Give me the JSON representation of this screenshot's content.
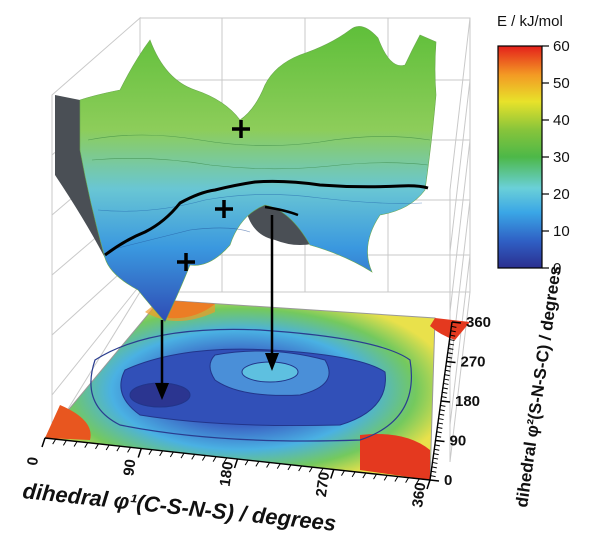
{
  "chart_data": {
    "type": "surface3d-with-contour",
    "xlabel": "dihedral φ¹(C-S-N-S) / degrees",
    "ylabel": "dihedral φ²(S-N-S-C) / degrees",
    "x_ticks": [
      "0",
      "90",
      "180",
      "270",
      "360"
    ],
    "y_ticks": [
      "0",
      "90",
      "180",
      "270",
      "360"
    ],
    "xlim": [
      0,
      360
    ],
    "ylim": [
      0,
      360
    ],
    "colorbar": {
      "title": "E / kJ/mol",
      "ticks": [
        "60",
        "50",
        "40",
        "30",
        "20",
        "10",
        "0"
      ],
      "range": [
        0,
        60
      ]
    },
    "minima_markers": [
      {
        "x": 90,
        "y": 90
      },
      {
        "x": 180,
        "y": 180
      },
      {
        "x": 180,
        "y": 270
      }
    ],
    "colors": {
      "low": "#2b3a9c",
      "mid": "#3bb3e8",
      "green": "#5bbf3c",
      "high": "#e8231c"
    }
  }
}
